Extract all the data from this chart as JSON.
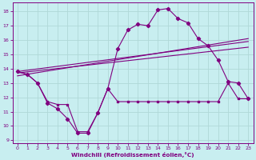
{
  "background_color": "#c8eef0",
  "grid_color": "#b0d8d8",
  "line_color": "#800080",
  "xlabel": "Windchill (Refroidissement éolien,°C)",
  "xlim": [
    -0.5,
    23.5
  ],
  "ylim": [
    8.8,
    18.6
  ],
  "yticks": [
    9,
    10,
    11,
    12,
    13,
    14,
    15,
    16,
    17,
    18
  ],
  "xticks": [
    0,
    1,
    2,
    3,
    4,
    5,
    6,
    7,
    8,
    9,
    10,
    11,
    12,
    13,
    14,
    15,
    16,
    17,
    18,
    19,
    20,
    21,
    22,
    23
  ],
  "curve1_x": [
    0,
    1,
    2,
    3,
    4,
    5,
    6,
    7,
    8,
    9,
    10,
    11,
    12,
    13,
    14,
    15,
    16,
    17,
    18,
    19,
    20,
    21,
    22,
    23
  ],
  "curve1_y": [
    13.8,
    13.6,
    13.0,
    11.6,
    11.2,
    10.5,
    9.5,
    9.5,
    10.9,
    12.6,
    15.4,
    16.7,
    17.1,
    17.0,
    18.1,
    18.2,
    17.5,
    17.2,
    16.1,
    15.6,
    14.6,
    13.1,
    13.0,
    11.9
  ],
  "curve2_x": [
    0,
    1,
    2,
    3,
    4,
    5,
    6,
    7,
    8,
    9,
    10,
    11,
    12,
    13,
    14,
    15,
    16,
    17,
    18,
    19,
    20,
    21,
    22,
    23
  ],
  "curve2_y": [
    13.8,
    13.6,
    13.0,
    11.7,
    11.5,
    11.5,
    9.6,
    9.6,
    10.9,
    12.6,
    11.7,
    11.7,
    11.7,
    11.7,
    11.7,
    11.7,
    11.7,
    11.7,
    11.7,
    11.7,
    11.7,
    13.0,
    11.9,
    11.9
  ],
  "trendline1_x": [
    0,
    23
  ],
  "trendline1_y": [
    13.8,
    15.9
  ],
  "trendline2_x": [
    0,
    23
  ],
  "trendline2_y": [
    13.7,
    15.5
  ],
  "trendline3_x": [
    0,
    23
  ],
  "trendline3_y": [
    13.5,
    16.1
  ]
}
